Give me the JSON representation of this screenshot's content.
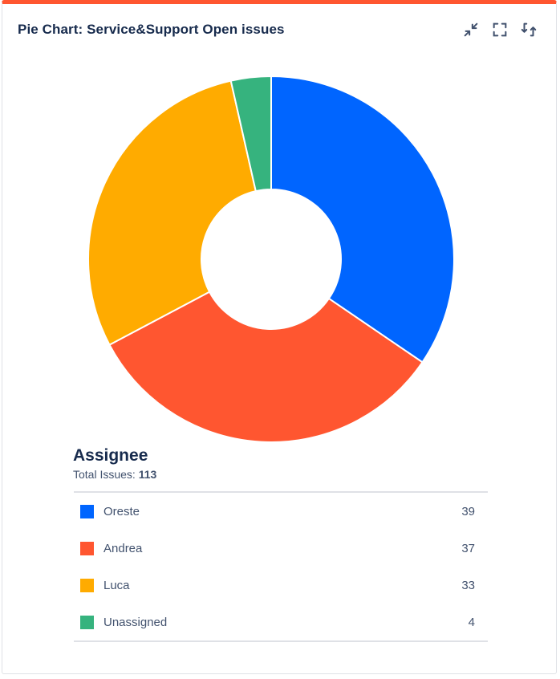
{
  "gadget": {
    "title": "Pie Chart: Service&Support Open issues",
    "accent_color": "#ff5630",
    "actions": [
      {
        "name": "minimize-icon"
      },
      {
        "name": "fullscreen-icon"
      },
      {
        "name": "refresh-icon"
      }
    ]
  },
  "legend": {
    "title": "Assignee",
    "total_label": "Total Issues:",
    "total_value": "113"
  },
  "chart_data": {
    "type": "pie",
    "donut": true,
    "title": "",
    "categories": [
      "Oreste",
      "Andrea",
      "Luca",
      "Unassigned"
    ],
    "values": [
      39,
      37,
      33,
      4
    ],
    "colors": [
      "#0065ff",
      "#ff5630",
      "#ffab00",
      "#36b37e"
    ],
    "rows": [
      {
        "label": "Oreste",
        "value": "39",
        "color": "#0065ff"
      },
      {
        "label": "Andrea",
        "value": "37",
        "color": "#ff5630"
      },
      {
        "label": "Luca",
        "value": "33",
        "color": "#ffab00"
      },
      {
        "label": "Unassigned",
        "value": "4",
        "color": "#36b37e"
      }
    ]
  }
}
